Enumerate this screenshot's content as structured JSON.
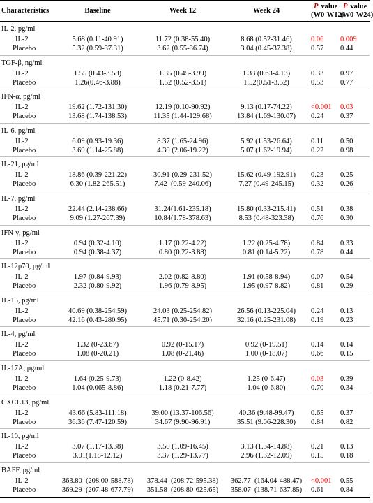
{
  "header": {
    "columns": [
      "Characteristics",
      "Baseline",
      "Week 12",
      "Week 24",
      {
        "italic": "P",
        "text": "value",
        "range": "(W0-W12)"
      },
      {
        "italic": "P",
        "text": "value",
        "range": "(W0-W24)"
      }
    ]
  },
  "groups": [
    {
      "title": "IL-2, pg/ml",
      "rows": [
        [
          "IL-2",
          "5.68 (0.11-40.91)",
          "11.72 (0.38-55.40)",
          "8.68 (0.52-31.46)",
          {
            "text": "0.06",
            "color": "#ff0000"
          },
          {
            "text": "0.009",
            "color": "#ff0000"
          }
        ],
        [
          "Placebo",
          "5.32 (0.59-37.31)",
          "3.62 (0.55-36.74)",
          "3.04 (0.45-37.38)",
          "0.57",
          "0.44"
        ]
      ]
    },
    {
      "title": "TGF-β, ng/ml",
      "rows": [
        [
          "IL-2",
          "1.55 (0.43-3.58)",
          "1.35 (0.45-3.99)",
          "1.33 (0.63-4.13)",
          "0.33",
          "0.97"
        ],
        [
          "Placebo",
          "1.26(0.46-3.88)",
          "1.52 (0.52-3.51)",
          "1.52(0.51-3.52)",
          "0.53",
          "0.77"
        ]
      ]
    },
    {
      "title": "IFN-α, pg/ml",
      "rows": [
        [
          "IL-2",
          "19.62 (1.72-131.30)",
          "12.19 (0.10-90.92)",
          "9.13 (0.17-74.22)",
          {
            "text": "<0.001",
            "color": "#ff0000"
          },
          {
            "text": "0.03",
            "color": "#ff0000"
          }
        ],
        [
          "Placebo",
          "13.68 (1.74-138.53)",
          "11.35 (1.44-129.68)",
          "13.84 (1.69-130.07)",
          "0.24",
          "0.37"
        ]
      ]
    },
    {
      "title": "IL-6, pg/ml",
      "rows": [
        [
          "IL-2",
          "6.09 (0.93-19.36)",
          "8.37 (1.65-24.96)",
          "5.92 (1.53-26.64)",
          "0.11",
          "0.50"
        ],
        [
          "Placebo",
          "3.69 (1.14-25.88)",
          "4.30 (2.06-19.22)",
          "5.07 (1.62-19.94)",
          "0.22",
          "0.98"
        ]
      ]
    },
    {
      "title": "IL-21, pg/ml",
      "rows": [
        [
          "IL-2",
          "18.86 (0.39-221.22)",
          "30.91 (0.29-231.52)",
          "15.62 (0.49-192.91)",
          "0.23",
          "0.25"
        ],
        [
          "Placebo",
          "6.30 (1.82-265.51)",
          "7.42  (0.59-240.06)",
          "7.27 (0.49-245.15)",
          "0.32",
          "0.26"
        ]
      ]
    },
    {
      "title": "IL-7, pg/ml",
      "rows": [
        [
          "IL-2",
          "22.44 (2.14-238.66)",
          "31.24(1.61-235.18)",
          "15.80 (0.33-215.41)",
          "0.51",
          "0.38"
        ],
        [
          "Placebo",
          "9.09 (1.27-267.39)",
          "10.84(1.78-378.63)",
          "8.53 (0.48-323.38)",
          "0.76",
          "0.30"
        ]
      ]
    },
    {
      "title": "IFN-γ, pg/ml",
      "rows": [
        [
          "IL-2",
          "0.94 (0.32-4.10)",
          "1.17 (0.22-4.22)",
          "1.22 (0.25-4.78)",
          "0.84",
          "0.33"
        ],
        [
          "Placebo",
          "0.94 (0.38-4.37)",
          "0.80 (0.22-3.88)",
          "0.81 (0.14-5.22)",
          "0.78",
          "0.44"
        ]
      ]
    },
    {
      "title": "IL-12p70, pg/ml",
      "rows": [
        [
          "IL-2",
          "1.97 (0.84-9.93)",
          "2.02 (0.82-8.80)",
          "1.91 (0.58-8.94)",
          "0.07",
          "0.54"
        ],
        [
          "Placebo",
          "2.32 (0.80-9.92)",
          "1.96 (0.79-8.95)",
          "1.95 (0.97-8.82)",
          "0.81",
          "0.29"
        ]
      ]
    },
    {
      "title": "IL-15, pg/ml",
      "rows": [
        [
          "IL-2",
          "40.69 (0.38-254.59)",
          "24.03 (0.25-254.82)",
          "26.56 (0.13-225.04)",
          "0.24",
          "0.13"
        ],
        [
          "Placebo",
          "42.16 (0.43-280.95)",
          "45.71 (0.30-254.20)",
          "32.16 (0.25-231.08)",
          "0.19",
          "0.23"
        ]
      ]
    },
    {
      "title": "IL-4, pg/ml",
      "rows": [
        [
          "IL-2",
          "1.32 (0-23.67)",
          "0.92 (0-15.17)",
          "0.92 (0-19.51)",
          "0.14",
          "0.14"
        ],
        [
          "Placebo",
          "1.08 (0-20.21)",
          "1.08 (0-21.46)",
          "1.00 (0-18.07)",
          "0.66",
          "0.15"
        ]
      ]
    },
    {
      "title": "IL-17A, pg/ml",
      "rows": [
        [
          "IL-2",
          "1.64 (0.25-9.73)",
          "1.22 (0-8.42)",
          "1.25 (0-6.47)",
          {
            "text": "0.03",
            "color": "#ff0000"
          },
          "0.39"
        ],
        [
          "Placebo",
          "1.04 (0.065-8.86)",
          "1.18 (0.21-7.77)",
          "1.04 (0-6.80)",
          "0.70",
          "0.34"
        ]
      ]
    },
    {
      "title": "CXCL13, pg/ml",
      "rows": [
        [
          "IL-2",
          "43.66 (5.83-111.18)",
          "39.00 (13.37-106.56)",
          "40.36 (9.48-99.47)",
          "0.65",
          "0.37"
        ],
        [
          "Placebo",
          "36.36 (7.47-120.59)",
          "34.67 (9.90-96.91)",
          "35.51 (9.06-228.30)",
          "0.84",
          "0.82"
        ]
      ]
    },
    {
      "title": "IL-10, pg/ml",
      "rows": [
        [
          "IL-2",
          "3.07 (1.17-13.38)",
          "3.50 (1.09-16.45)",
          "3.13 (1.34-14.88)",
          "0.21",
          "0.13"
        ],
        [
          "Placebo",
          "3.01(1.18-12.12)",
          "3.37 (1.29-13.77)",
          "2.96 (1.32-12.09)",
          "0.15",
          "0.18"
        ]
      ]
    },
    {
      "title": "BAFF, pg/ml",
      "rows": [
        [
          "IL-2",
          "363.80  (208.00-588.78)",
          "378.44  (208.72-595.38)",
          "362.77  (164.04-488.47)",
          {
            "text": "<0.001",
            "color": "#ff0000"
          },
          "0.55"
        ],
        [
          "Placebo",
          "369.29  (207.48-677.79)",
          "351.58  (208.80-625.65)",
          "358.07  (138.71-637.85)",
          "0.61",
          "0.84"
        ]
      ]
    }
  ]
}
